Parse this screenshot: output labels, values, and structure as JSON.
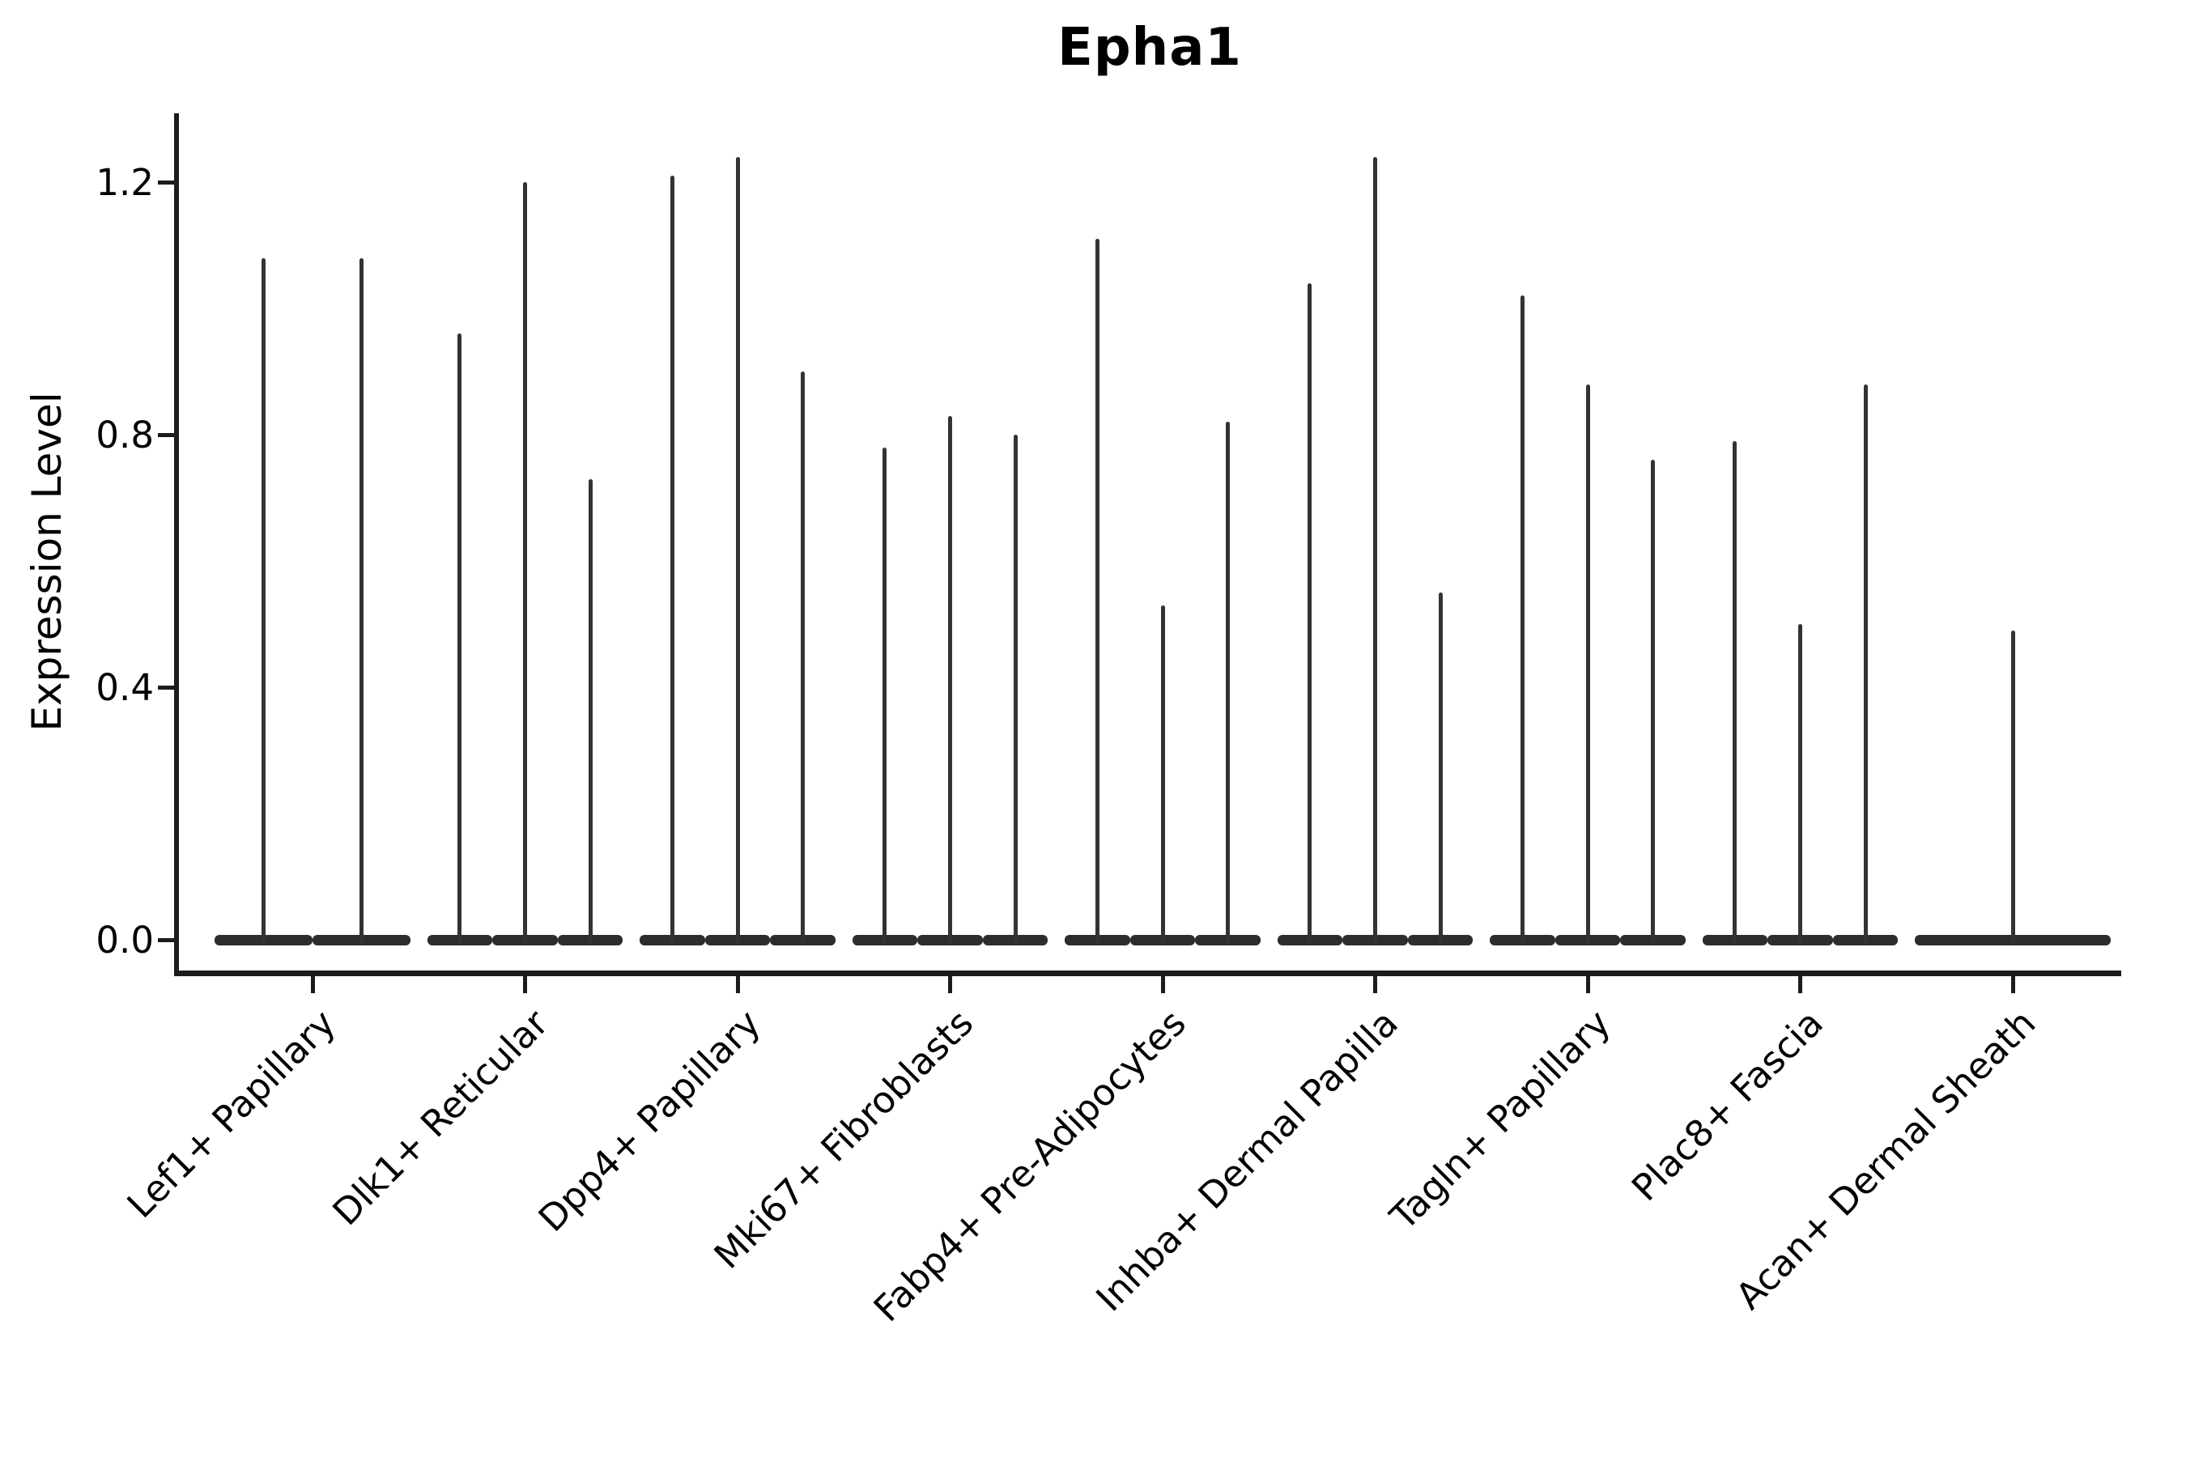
{
  "title": "Epha1",
  "y_axis": {
    "label": "Expression Level",
    "tick_labels": [
      "0.0",
      "0.4",
      "0.8",
      "1.2"
    ]
  },
  "colors": {
    "violin": "#333333",
    "violin_body": "#2d2d2d",
    "spine": "#1c1c1c",
    "text": "#000000",
    "background": "#ffffff"
  },
  "chart_data": {
    "type": "violin",
    "title": "Epha1",
    "xlabel": "",
    "ylabel": "Expression Level",
    "ylim": [
      -0.05,
      1.3
    ],
    "yticks": [
      0,
      0.4,
      0.8,
      1.2
    ],
    "grid": false,
    "legend": null,
    "x_tick_rotation_deg": 45,
    "description": "Violin plot of Epha1 expression level per fibroblast cell type; each violin is a wide flat body at 0 with a thin spike rising to the maximum expression value.",
    "categories": [
      "Lef1+ Papillary",
      "Dlk1+ Reticular",
      "Dpp4+ Papillary",
      "Mki67+ Fibroblasts",
      "Fabp4+ Pre-Adipocytes",
      "Inhba+ Dermal Papilla",
      "Tagln+ Papillary",
      "Plac8+ Fascia",
      "Acan+ Dermal Sheath"
    ],
    "groups": [
      {
        "category": "Lef1+ Papillary",
        "violin_max_values": [
          1.08,
          1.08
        ]
      },
      {
        "category": "Dlk1+ Reticular",
        "violin_max_values": [
          0.96,
          1.2,
          0.73
        ]
      },
      {
        "category": "Dpp4+ Papillary",
        "violin_max_values": [
          1.21,
          1.24,
          0.9
        ]
      },
      {
        "category": "Mki67+ Fibroblasts",
        "violin_max_values": [
          0.78,
          0.83,
          0.8
        ]
      },
      {
        "category": "Fabp4+ Pre-Adipocytes",
        "violin_max_values": [
          1.11,
          0.53,
          0.82
        ]
      },
      {
        "category": "Inhba+ Dermal Papilla",
        "violin_max_values": [
          1.04,
          1.24,
          0.55
        ]
      },
      {
        "category": "Tagln+ Papillary",
        "violin_max_values": [
          1.02,
          0.88,
          0.76
        ]
      },
      {
        "category": "Plac8+ Fascia",
        "violin_max_values": [
          0.79,
          0.5,
          0.88
        ]
      },
      {
        "category": "Acan+ Dermal Sheath",
        "violin_max_values": [
          0.49
        ]
      }
    ]
  }
}
